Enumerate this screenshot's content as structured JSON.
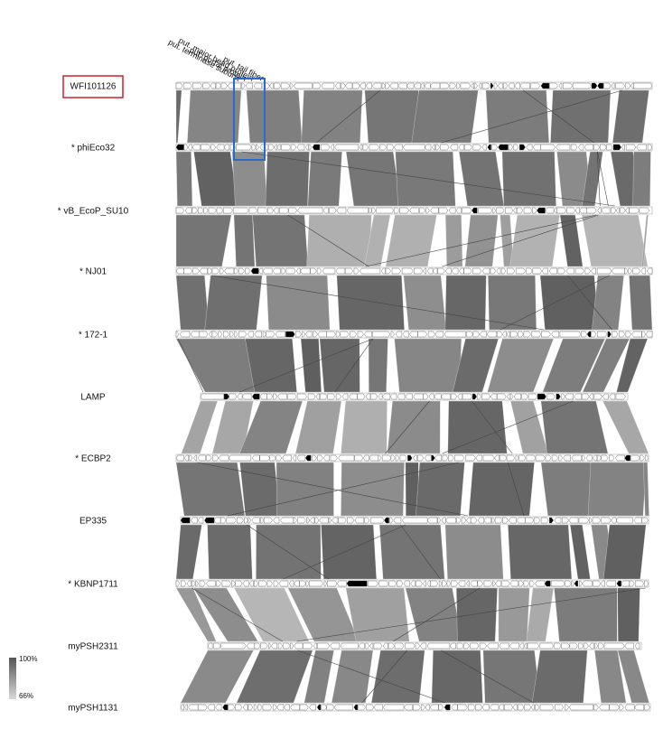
{
  "annotations": [
    "put. terminase subunit",
    "put. portal protein",
    "put. major head protein",
    "put. tail fiber"
  ],
  "genomes": [
    "WFI101126",
    "* phiEco32",
    "* vB_EcoP_SU10",
    "* NJ01",
    "* 172-1",
    "LAMP",
    "* ECBP2",
    "EP335",
    "* KBNP1711",
    "myPSH2311",
    "myPSH1131"
  ],
  "legend": {
    "max": "100%",
    "min": "66%"
  }
}
